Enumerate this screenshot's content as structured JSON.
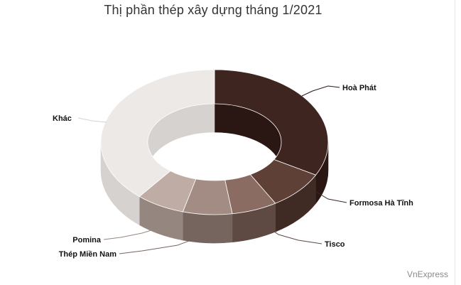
{
  "chart_data": {
    "type": "pie",
    "subtype": "donut-3d",
    "title": "Thị phần thép xây dựng tháng 1/2021",
    "series": [
      {
        "name": "Hoà Phát",
        "value": 32.5,
        "color": "#3f2520",
        "side": "#2a1612"
      },
      {
        "name": "Formosa Hà Tĩnh",
        "value": 8.5,
        "color": "#5e4037",
        "side": "#3f2a24"
      },
      {
        "name": "Tisco",
        "value": 6.5,
        "color": "#8a6c62",
        "side": "#5e4a43"
      },
      {
        "name": "Thép Miền Nam",
        "value": 7.0,
        "color": "#a28c83",
        "side": "#76655e"
      },
      {
        "name": "Pomina",
        "value": 7.0,
        "color": "#bfaca5",
        "side": "#958780"
      },
      {
        "name": "Khác",
        "value": 38.5,
        "color": "#ede9e7",
        "side": "#d6d2d0"
      }
    ]
  },
  "source": "VnExpress"
}
